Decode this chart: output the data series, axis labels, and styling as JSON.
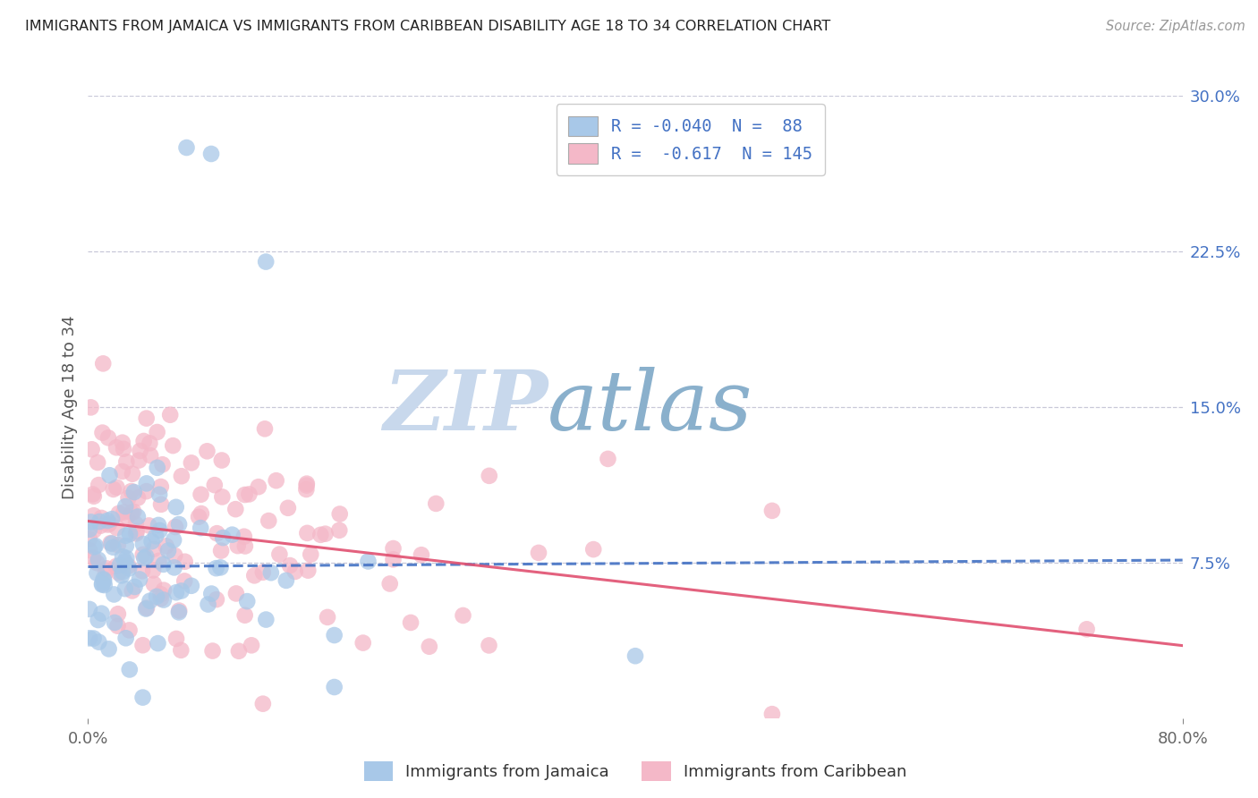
{
  "title": "IMMIGRANTS FROM JAMAICA VS IMMIGRANTS FROM CARIBBEAN DISABILITY AGE 18 TO 34 CORRELATION CHART",
  "source": "Source: ZipAtlas.com",
  "ylabel": "Disability Age 18 to 34",
  "legend_label1": "Immigrants from Jamaica",
  "legend_label2": "Immigrants from Caribbean",
  "R1": -0.04,
  "N1": 88,
  "R2": -0.617,
  "N2": 145,
  "xlim": [
    0.0,
    0.8
  ],
  "ylim": [
    0.0,
    0.3
  ],
  "yticks": [
    0.075,
    0.15,
    0.225,
    0.3
  ],
  "ytick_labels": [
    "7.5%",
    "15.0%",
    "22.5%",
    "30.0%"
  ],
  "color_jamaica": "#a8c8e8",
  "color_caribbean": "#f4b8c8",
  "color_jamaica_line": "#4472c4",
  "color_caribbean_line": "#e05070",
  "color_grid": "#c8c8d8",
  "background_color": "#ffffff",
  "watermark_zip_color": "#c8d8e8",
  "watermark_atlas_color": "#9ab8d0",
  "trendline1_slope": 0.004,
  "trendline1_intercept": 0.073,
  "trendline2_slope": -0.075,
  "trendline2_intercept": 0.095
}
